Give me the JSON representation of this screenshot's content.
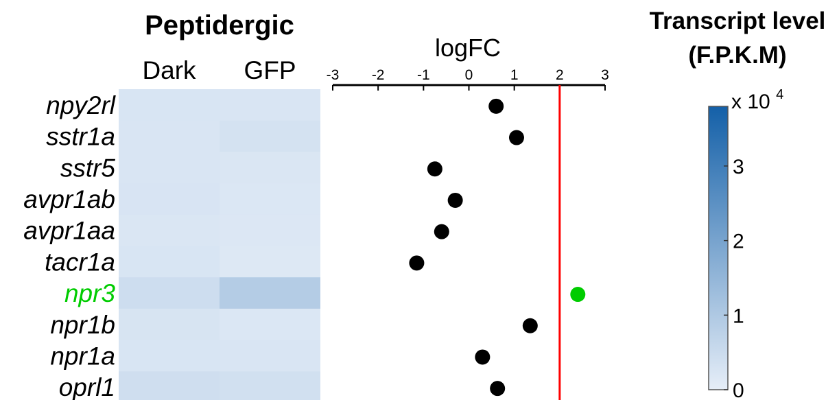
{
  "chart_data": {
    "type": "heatmap",
    "title": "Peptidergic",
    "columns": [
      "Dark",
      "GFP"
    ],
    "genes": [
      "npy2rl",
      "sstr1a",
      "sstr5",
      "avpr1ab",
      "avpr1aa",
      "tacr1a",
      "npr3",
      "npr1b",
      "npr1a",
      "oprl1"
    ],
    "highlight_gene": "npr3",
    "highlight_color": "#00cc00",
    "values": [
      [
        2500,
        2300
      ],
      [
        2400,
        3300
      ],
      [
        2300,
        2200
      ],
      [
        2600,
        2000
      ],
      [
        2200,
        1800
      ],
      [
        2500,
        1700
      ],
      [
        4500,
        9000
      ],
      [
        2800,
        2000
      ],
      [
        2500,
        2300
      ],
      [
        4200,
        3800
      ]
    ],
    "logfc": {
      "label": "logFC",
      "xlim": [
        -3,
        3
      ],
      "ticks": [
        -3,
        -2,
        -1,
        0,
        1,
        2,
        3
      ],
      "threshold": 2,
      "threshold_color": "#ff0000",
      "point_color": "#000000",
      "values": [
        0.6,
        1.05,
        -0.75,
        -0.3,
        -0.6,
        -1.15,
        2.4,
        1.35,
        0.3,
        0.63
      ]
    },
    "colorbar": {
      "label_line1": "Transcript level",
      "label_line2": "(F.P.K.M)",
      "exponent_base": "x 10",
      "exponent_power": "4",
      "range": [
        0,
        3.8
      ],
      "ticks": [
        0,
        1,
        2,
        3
      ],
      "color_low": "#e6eef8",
      "color_high": "#1460a8"
    }
  }
}
